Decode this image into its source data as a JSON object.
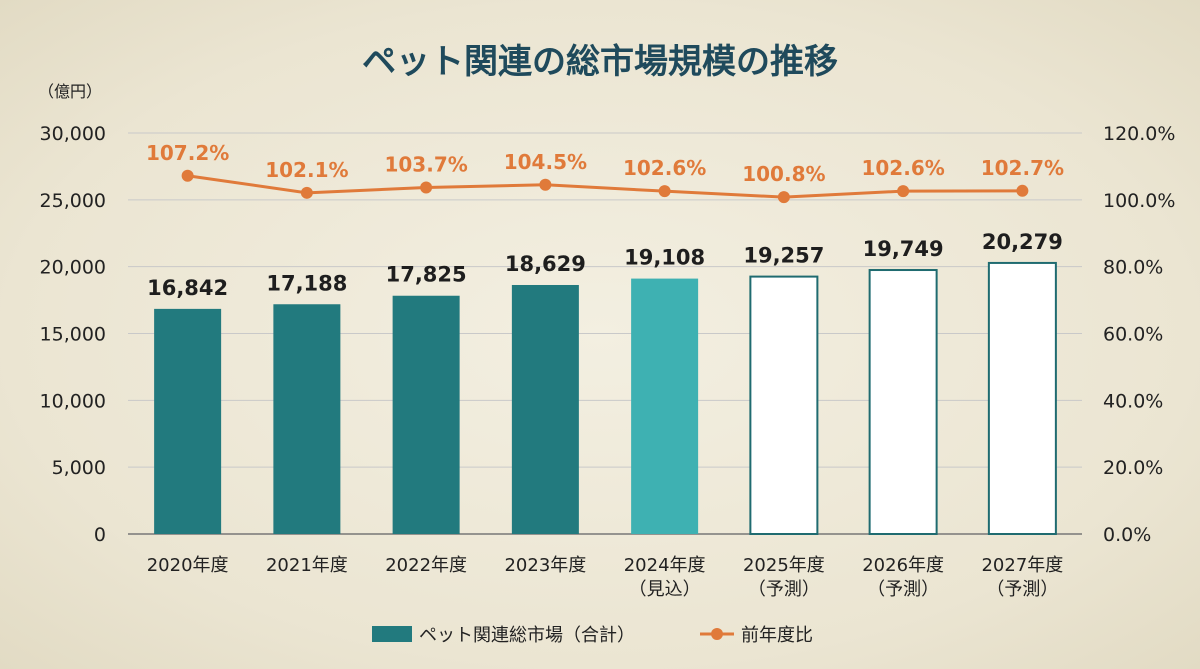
{
  "title": "ペット関連の総市場規模の推移",
  "unit_label": "（億円）",
  "colors": {
    "actual_bar": "#227a7e",
    "estimate_bar": "#3eb1b2",
    "forecast_bar_fill": "#ffffff",
    "forecast_bar_stroke": "#1f6b70",
    "line": "#e07a3a",
    "grid": "#c9c9c9"
  },
  "legend": {
    "bar_label": "ペット関連総市場（合計）",
    "line_label": "前年度比"
  },
  "chart_data": {
    "type": "bar",
    "title": "ペット関連の総市場規模の推移",
    "ylabel": "（億円）",
    "ylim": [
      0,
      30000
    ],
    "yticks": [
      "0",
      "5,000",
      "10,000",
      "15,000",
      "20,000",
      "25,000",
      "30,000"
    ],
    "y2lim": [
      0,
      120
    ],
    "y2ticks": [
      "0.0%",
      "20.0%",
      "40.0%",
      "60.0%",
      "80.0%",
      "100.0%",
      "120.0%"
    ],
    "categories": [
      [
        "2020年度"
      ],
      [
        "2021年度"
      ],
      [
        "2022年度"
      ],
      [
        "2023年度"
      ],
      [
        "2024年度",
        "（見込）"
      ],
      [
        "2025年度",
        "（予測）"
      ],
      [
        "2026年度",
        "（予測）"
      ],
      [
        "2027年度",
        "（予測）"
      ]
    ],
    "bar_status": [
      "actual",
      "actual",
      "actual",
      "actual",
      "estimate",
      "forecast",
      "forecast",
      "forecast"
    ],
    "series": [
      {
        "name": "ペット関連総市場（合計）",
        "type": "bar",
        "axis": "left",
        "values": [
          16842,
          17188,
          17825,
          18629,
          19108,
          19257,
          19749,
          20279
        ],
        "labels": [
          "16,842",
          "17,188",
          "17,825",
          "18,629",
          "19,108",
          "19,257",
          "19,749",
          "20,279"
        ]
      },
      {
        "name": "前年度比",
        "type": "line",
        "axis": "right",
        "values": [
          107.2,
          102.1,
          103.7,
          104.5,
          102.6,
          100.8,
          102.6,
          102.7
        ],
        "labels": [
          "107.2%",
          "102.1%",
          "103.7%",
          "104.5%",
          "102.6%",
          "100.8%",
          "102.6%",
          "102.7%"
        ]
      }
    ],
    "grid": true,
    "legend_position": "bottom-center"
  }
}
